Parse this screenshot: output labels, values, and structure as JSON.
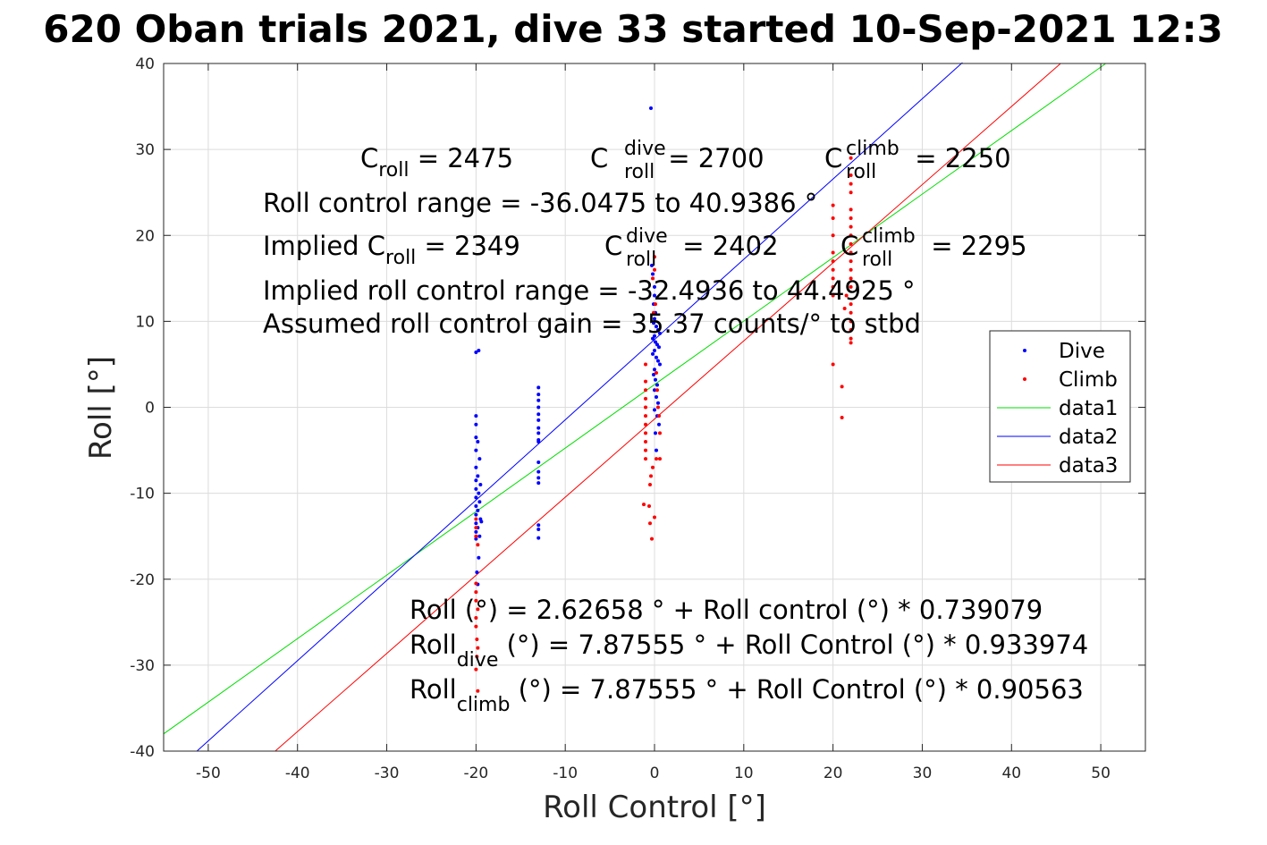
{
  "chart_data": {
    "type": "scatter",
    "title": "620 Oban trials 2021, dive 33 started 10-Sep-2021 12:3",
    "xlabel": "Roll Control [°]",
    "ylabel": "Roll [°]",
    "xlim": [
      -55,
      55
    ],
    "ylim": [
      -40,
      40
    ],
    "xticks": [
      "-50",
      "-40",
      "-30",
      "-20",
      "-10",
      "0",
      "10",
      "20",
      "30",
      "40",
      "50"
    ],
    "yticks": [
      "40",
      "30",
      "20",
      "10",
      "0",
      "-10",
      "-20",
      "-30",
      "-40"
    ],
    "grid": true,
    "legend_position": "right",
    "series": [
      {
        "name": "Dive",
        "kind": "points",
        "color": "#0000ff",
        "points": [
          [
            -20,
            6.4
          ],
          [
            -19.7,
            6.6
          ],
          [
            -20,
            -1
          ],
          [
            -20,
            -2
          ],
          [
            -20,
            -3.5
          ],
          [
            -19.8,
            -4
          ],
          [
            -20,
            -5
          ],
          [
            -19.6,
            -6
          ],
          [
            -20,
            -7
          ],
          [
            -19.8,
            -8
          ],
          [
            -20,
            -8.5
          ],
          [
            -19.5,
            -9
          ],
          [
            -20,
            -9.5
          ],
          [
            -19.7,
            -10
          ],
          [
            -20,
            -10.5
          ],
          [
            -19.6,
            -11
          ],
          [
            -20,
            -11.5
          ],
          [
            -19.8,
            -12
          ],
          [
            -20,
            -12.5
          ],
          [
            -19.5,
            -13
          ],
          [
            -20,
            -13.5
          ],
          [
            -19.8,
            -14
          ],
          [
            -20,
            -14.5
          ],
          [
            -19.6,
            -15
          ],
          [
            -20,
            -15.3
          ],
          [
            -19.4,
            -13.3
          ],
          [
            -19.7,
            -17.5
          ],
          [
            -19.9,
            -19.2
          ],
          [
            -19.8,
            -20.6
          ],
          [
            -13,
            2.3
          ],
          [
            -13,
            1.5
          ],
          [
            -13,
            0.8
          ],
          [
            -13,
            0
          ],
          [
            -13,
            -0.8
          ],
          [
            -13,
            -1.5
          ],
          [
            -13,
            -2.4
          ],
          [
            -13,
            -3
          ],
          [
            -13,
            -3.8
          ],
          [
            -13,
            -4
          ],
          [
            -13,
            -6.4
          ],
          [
            -13,
            -7.5
          ],
          [
            -13,
            -8.2
          ],
          [
            -13,
            -8.8
          ],
          [
            -13,
            -13.7
          ],
          [
            -13,
            -14.2
          ],
          [
            -13,
            -15.2
          ],
          [
            -0.4,
            34.8
          ],
          [
            -0.3,
            16.5
          ],
          [
            -0.2,
            15.5
          ],
          [
            0,
            14
          ],
          [
            0,
            13
          ],
          [
            -0.1,
            12
          ],
          [
            0.1,
            11
          ],
          [
            0,
            10.3
          ],
          [
            -0.1,
            9.8
          ],
          [
            0.2,
            9.4
          ],
          [
            0.4,
            9
          ],
          [
            0.6,
            8.6
          ],
          [
            0,
            8.3
          ],
          [
            -0.2,
            8
          ],
          [
            0.1,
            7.6
          ],
          [
            0.3,
            7.3
          ],
          [
            0.5,
            7
          ],
          [
            0,
            6.6
          ],
          [
            -0.2,
            6.2
          ],
          [
            0.2,
            5.8
          ],
          [
            0.4,
            5.4
          ],
          [
            0.6,
            5
          ],
          [
            0,
            4.4
          ],
          [
            -0.1,
            3.8
          ],
          [
            0.1,
            3.2
          ],
          [
            0.3,
            2.6
          ],
          [
            0,
            2
          ],
          [
            0.2,
            1.2
          ],
          [
            0.4,
            0.5
          ],
          [
            0,
            -0.3
          ],
          [
            0.3,
            -1
          ],
          [
            0.5,
            -2
          ],
          [
            0.1,
            -3
          ],
          [
            0.2,
            -5
          ]
        ]
      },
      {
        "name": "Climb",
        "kind": "points",
        "color": "#ff0000",
        "points": [
          [
            -20,
            -13
          ],
          [
            -20,
            -14
          ],
          [
            -20,
            -15
          ],
          [
            -19.8,
            -16
          ],
          [
            -20,
            -20.5
          ],
          [
            -20,
            -21.5
          ],
          [
            -20,
            -22.5
          ],
          [
            -19.8,
            -23.5
          ],
          [
            -20,
            -24.5
          ],
          [
            -20,
            -25.5
          ],
          [
            -19.9,
            -27
          ],
          [
            -19.8,
            -28
          ],
          [
            -19.9,
            -29
          ],
          [
            -20,
            -30.5
          ],
          [
            -19.8,
            -33
          ],
          [
            -1,
            5
          ],
          [
            -1,
            3
          ],
          [
            -1,
            2
          ],
          [
            -1,
            1
          ],
          [
            -1,
            0
          ],
          [
            -1,
            -1
          ],
          [
            -1,
            -2
          ],
          [
            -1,
            -3
          ],
          [
            -1,
            -4
          ],
          [
            -1,
            -5
          ],
          [
            -1,
            -6
          ],
          [
            -1.2,
            -11.3
          ],
          [
            -0.6,
            -11.5
          ],
          [
            -0.5,
            -9
          ],
          [
            -0.4,
            -8
          ],
          [
            -0.2,
            -7
          ],
          [
            -0.5,
            -13.5
          ],
          [
            -0.3,
            -15.3
          ],
          [
            0,
            -12.8
          ],
          [
            0,
            17.5
          ],
          [
            0,
            16
          ],
          [
            -0.2,
            15
          ],
          [
            0.1,
            12
          ],
          [
            -0.1,
            11
          ],
          [
            0.2,
            4
          ],
          [
            0.3,
            2
          ],
          [
            0.4,
            0
          ],
          [
            0.5,
            -1
          ],
          [
            0.6,
            -3
          ],
          [
            0.2,
            -6
          ],
          [
            0.6,
            -6
          ],
          [
            20,
            23.5
          ],
          [
            20,
            22
          ],
          [
            20,
            20
          ],
          [
            20,
            18
          ],
          [
            20,
            17
          ],
          [
            20,
            16
          ],
          [
            20,
            15
          ],
          [
            20,
            14
          ],
          [
            20,
            13
          ],
          [
            20,
            5
          ],
          [
            21,
            -1.2
          ],
          [
            21,
            2.4
          ],
          [
            21.3,
            11.5
          ],
          [
            21.5,
            13
          ],
          [
            22,
            29
          ],
          [
            22,
            27
          ],
          [
            22,
            26
          ],
          [
            22,
            25
          ],
          [
            22,
            23
          ],
          [
            22,
            22
          ],
          [
            22,
            21
          ],
          [
            22,
            20
          ],
          [
            22,
            19
          ],
          [
            22,
            18
          ],
          [
            22,
            17
          ],
          [
            22,
            16
          ],
          [
            22,
            15
          ],
          [
            22,
            14
          ],
          [
            22,
            12
          ],
          [
            22,
            11
          ],
          [
            22,
            10
          ],
          [
            22,
            9
          ],
          [
            22,
            8
          ],
          [
            22,
            7.5
          ]
        ]
      },
      {
        "name": "data1",
        "kind": "line",
        "color": "#00dd00",
        "x": [
          -55,
          50.5
        ],
        "y": [
          -37.99,
          39.95
        ]
      },
      {
        "name": "data2",
        "kind": "line",
        "color": "#0000ff",
        "x": [
          -51.27,
          34.5
        ],
        "y": [
          -40,
          40.1
        ]
      },
      {
        "name": "data3",
        "kind": "line",
        "color": "#ff0000",
        "x": [
          -42.5,
          45.5
        ],
        "y": [
          -40,
          40
        ]
      }
    ]
  },
  "annotations": {
    "c_roll_base": "C",
    "c_roll_sub": "roll",
    "c_roll_rest": " = 2475",
    "c_dive_base": "C",
    "c_dive_sup": "dive",
    "c_dive_sub": "roll",
    "c_dive_rest": " = 2700",
    "c_climb_base": "C",
    "c_climb_sup": "climb",
    "c_climb_sub": "roll",
    "c_climb_rest": " = 2250",
    "range_line": "Roll control range = -36.0475 to 40.9386 °",
    "implied_base": "Implied C",
    "implied_sub": "roll",
    "implied_rest": " = 2349",
    "implied_dive_base": "C",
    "implied_dive_sup": "dive",
    "implied_dive_sub": "roll",
    "implied_dive_rest": " = 2402",
    "implied_climb_base": "C",
    "implied_climb_sup": "climb",
    "implied_climb_sub": "roll",
    "implied_climb_rest": " = 2295",
    "implied_range_line": "Implied roll control range = -32.4936 to 44.4925 °",
    "gain_line": "Assumed roll control gain = 35.37 counts/° to stbd",
    "fit_line": "Roll (°) = 2.62658 ° + Roll control (°) * 0.739079",
    "fit_dive_base": "Roll",
    "fit_dive_sub": "dive",
    "fit_dive_rest": " (°) = 7.87555 ° + Roll Control (°) * 0.933974",
    "fit_climb_base": "Roll",
    "fit_climb_sub": "climb",
    "fit_climb_rest": " (°) = 7.87555 ° + Roll Control (°) * 0.90563"
  }
}
